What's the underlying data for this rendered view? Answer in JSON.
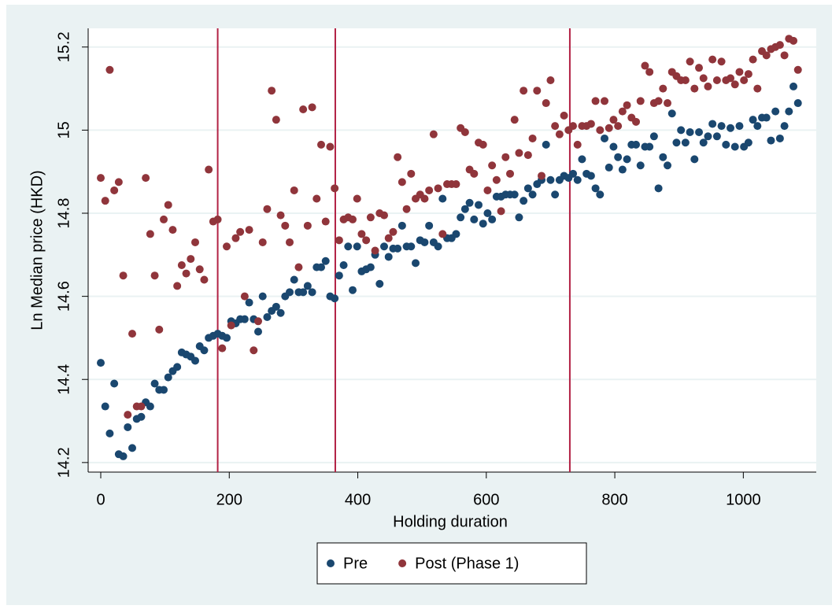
{
  "chart_data": {
    "type": "scatter",
    "x_label": "Holding duration",
    "y_label": "Ln Median price (HKD)",
    "x": [
      0,
      7,
      14,
      21,
      28,
      35,
      42,
      49,
      56,
      63,
      70,
      77,
      84,
      91,
      98,
      105,
      112,
      119,
      126,
      133,
      140,
      147,
      154,
      161,
      168,
      175,
      182,
      189,
      196,
      203,
      210,
      217,
      224,
      231,
      238,
      245,
      252,
      259,
      266,
      273,
      280,
      287,
      294,
      301,
      308,
      315,
      322,
      329,
      336,
      343,
      350,
      357,
      364,
      371,
      378,
      385,
      392,
      399,
      406,
      413,
      420,
      427,
      434,
      441,
      448,
      455,
      462,
      469,
      476,
      483,
      490,
      497,
      504,
      511,
      518,
      525,
      532,
      539,
      546,
      553,
      560,
      567,
      574,
      581,
      588,
      595,
      602,
      609,
      616,
      623,
      630,
      637,
      644,
      651,
      658,
      665,
      672,
      679,
      686,
      693,
      700,
      707,
      714,
      721,
      728,
      735,
      742,
      749,
      756,
      763,
      770,
      777,
      784,
      791,
      798,
      805,
      812,
      819,
      826,
      833,
      840,
      847,
      854,
      861,
      868,
      875,
      882,
      889,
      896,
      903,
      910,
      917,
      924,
      931,
      938,
      945,
      952,
      959,
      966,
      973,
      980,
      987,
      994,
      1001,
      1008,
      1015,
      1022,
      1029,
      1036,
      1043,
      1050,
      1057,
      1064,
      1071,
      1078,
      1085
    ],
    "series": [
      {
        "name": "Pre",
        "color": "#1a476f",
        "values": [
          14.44,
          14.335,
          14.27,
          14.39,
          14.22,
          14.215,
          14.285,
          14.235,
          14.305,
          14.31,
          14.345,
          14.335,
          14.39,
          14.375,
          14.375,
          14.405,
          14.42,
          14.43,
          14.465,
          14.46,
          14.455,
          14.445,
          14.48,
          14.47,
          14.5,
          14.505,
          14.51,
          14.505,
          14.5,
          14.54,
          14.535,
          14.545,
          14.545,
          14.585,
          14.545,
          14.515,
          14.6,
          14.55,
          14.565,
          14.575,
          14.56,
          14.6,
          14.61,
          14.64,
          14.61,
          14.61,
          14.625,
          14.61,
          14.67,
          14.67,
          14.685,
          14.6,
          14.595,
          14.65,
          14.675,
          14.72,
          14.615,
          14.72,
          14.66,
          14.665,
          14.67,
          14.7,
          14.63,
          14.72,
          14.695,
          14.715,
          14.715,
          14.77,
          14.72,
          14.72,
          14.68,
          14.735,
          14.73,
          14.77,
          14.73,
          14.72,
          14.835,
          14.74,
          14.74,
          14.75,
          14.79,
          14.81,
          14.825,
          14.785,
          14.82,
          14.775,
          14.8,
          14.785,
          14.84,
          14.84,
          14.845,
          14.845,
          14.845,
          14.79,
          14.83,
          14.86,
          14.845,
          14.87,
          14.88,
          14.965,
          14.88,
          14.845,
          14.88,
          14.89,
          14.885,
          14.895,
          14.88,
          14.93,
          14.895,
          14.89,
          14.86,
          14.845,
          14.98,
          14.91,
          14.96,
          14.935,
          14.905,
          14.93,
          14.965,
          14.965,
          14.915,
          14.96,
          14.96,
          14.985,
          14.86,
          14.935,
          14.915,
          15.04,
          14.97,
          15.0,
          14.97,
          14.995,
          14.93,
          14.995,
          14.97,
          14.985,
          15.015,
          14.985,
          15.01,
          14.965,
          15.005,
          14.96,
          15.01,
          14.96,
          14.97,
          15.025,
          15.01,
          15.03,
          15.03,
          14.975,
          15.045,
          14.98,
          15.01,
          15.045,
          15.105,
          15.065
        ]
      },
      {
        "name": "Post (Phase 1)",
        "color": "#90353b",
        "values": [
          14.885,
          14.83,
          15.145,
          14.855,
          14.875,
          14.65,
          14.315,
          14.51,
          14.335,
          14.335,
          14.885,
          14.75,
          14.65,
          14.52,
          14.785,
          14.82,
          14.76,
          14.625,
          14.675,
          14.655,
          14.69,
          14.73,
          14.665,
          14.64,
          14.905,
          14.78,
          14.785,
          14.475,
          14.72,
          14.53,
          14.74,
          14.755,
          14.6,
          14.76,
          14.47,
          14.54,
          14.73,
          14.81,
          15.095,
          15.025,
          14.795,
          14.77,
          14.73,
          14.855,
          14.67,
          15.05,
          14.77,
          15.055,
          14.835,
          14.965,
          14.78,
          14.96,
          14.86,
          14.735,
          14.785,
          14.79,
          14.785,
          14.835,
          14.75,
          14.735,
          14.79,
          14.71,
          14.8,
          14.795,
          14.74,
          14.755,
          14.935,
          14.875,
          14.81,
          14.895,
          14.835,
          14.845,
          14.835,
          14.855,
          14.99,
          14.86,
          14.75,
          14.87,
          14.87,
          14.87,
          15.005,
          14.995,
          14.905,
          14.895,
          14.97,
          14.965,
          14.855,
          14.915,
          14.88,
          14.805,
          14.935,
          14.895,
          15.025,
          14.945,
          15.095,
          14.94,
          14.98,
          15.095,
          14.89,
          15.065,
          15.12,
          15.01,
          14.99,
          15.035,
          15.0,
          15.01,
          14.965,
          15.01,
          15.01,
          15.015,
          15.07,
          15.0,
          15.07,
          15.005,
          15.025,
          15.01,
          15.045,
          15.06,
          15.03,
          15.02,
          15.07,
          15.155,
          15.14,
          15.065,
          15.07,
          15.1,
          15.065,
          15.14,
          15.13,
          15.12,
          15.12,
          15.165,
          15.1,
          15.15,
          15.125,
          15.105,
          15.17,
          15.12,
          15.165,
          15.12,
          15.125,
          15.11,
          15.14,
          15.12,
          15.135,
          15.17,
          15.1,
          15.19,
          15.18,
          15.195,
          15.2,
          15.205,
          15.18,
          15.22,
          15.215,
          15.145
        ]
      }
    ],
    "xlim": [
      -19.6,
      1113.5
    ],
    "ylim": [
      14.177,
      15.245
    ],
    "xticks": [
      0,
      200,
      400,
      600,
      800,
      1000
    ],
    "yticks": [
      14.2,
      14.4,
      14.6,
      14.8,
      15,
      15.2
    ],
    "xlines": [
      182,
      365,
      730
    ],
    "xline_color": "#b22144",
    "grid": true,
    "legend": "bottom"
  }
}
